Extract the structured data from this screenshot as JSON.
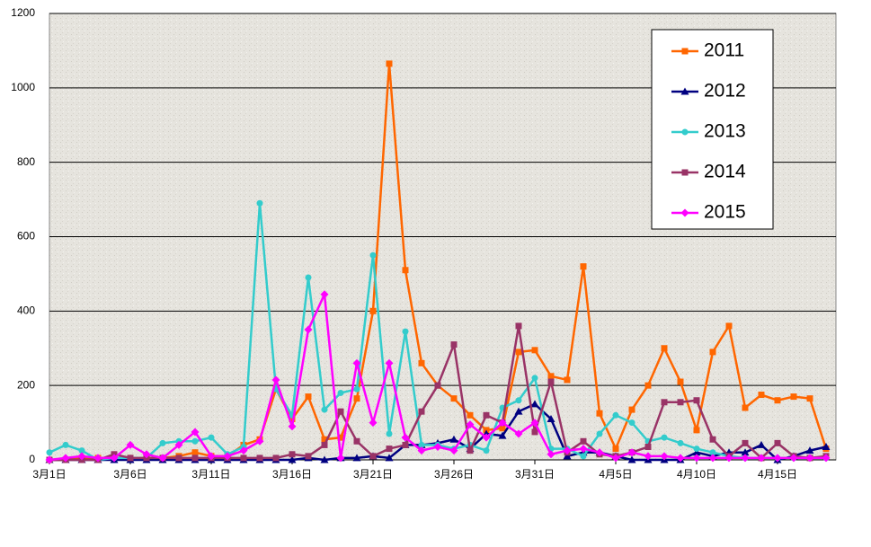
{
  "chart_data": {
    "type": "line",
    "categories": [
      "3月1日",
      null,
      null,
      null,
      null,
      "3月6日",
      null,
      null,
      null,
      null,
      "3月11日",
      null,
      null,
      null,
      null,
      "3月16日",
      null,
      null,
      null,
      null,
      "3月21日",
      null,
      null,
      null,
      null,
      "3月26日",
      null,
      null,
      null,
      null,
      "3月31日",
      null,
      null,
      null,
      null,
      "4月5日",
      null,
      null,
      null,
      null,
      "4月10日",
      null,
      null,
      null,
      null,
      "4月15日",
      null,
      null,
      null
    ],
    "series": [
      {
        "name": "2011",
        "color": "#ff6600",
        "marker": "square",
        "values": [
          0,
          0,
          5,
          5,
          5,
          5,
          5,
          5,
          10,
          20,
          10,
          10,
          40,
          55,
          190,
          110,
          170,
          55,
          60,
          165,
          400,
          1065,
          510,
          260,
          200,
          165,
          120,
          80,
          85,
          290,
          295,
          225,
          215,
          520,
          125,
          30,
          135,
          200,
          300,
          210,
          80,
          290,
          360,
          140,
          175,
          160,
          170,
          165,
          30
        ]
      },
      {
        "name": "2012",
        "color": "#000080",
        "marker": "triangle",
        "values": [
          0,
          0,
          0,
          0,
          0,
          0,
          0,
          0,
          0,
          0,
          0,
          0,
          0,
          0,
          0,
          0,
          5,
          0,
          5,
          5,
          10,
          5,
          40,
          40,
          45,
          55,
          30,
          70,
          65,
          130,
          150,
          110,
          10,
          20,
          20,
          10,
          0,
          0,
          0,
          0,
          20,
          10,
          20,
          20,
          40,
          0,
          10,
          25,
          35
        ]
      },
      {
        "name": "2013",
        "color": "#33cccc",
        "marker": "circle",
        "values": [
          20,
          40,
          25,
          0,
          5,
          5,
          5,
          45,
          50,
          50,
          60,
          15,
          35,
          690,
          190,
          120,
          490,
          135,
          180,
          190,
          550,
          70,
          345,
          40,
          40,
          30,
          40,
          25,
          140,
          160,
          220,
          30,
          30,
          10,
          70,
          120,
          100,
          50,
          60,
          45,
          30,
          20,
          10,
          5,
          5,
          5,
          5,
          5,
          5
        ]
      },
      {
        "name": "2014",
        "color": "#993366",
        "marker": "square",
        "values": [
          0,
          0,
          0,
          0,
          15,
          5,
          5,
          5,
          5,
          5,
          5,
          5,
          5,
          5,
          5,
          15,
          10,
          40,
          130,
          50,
          10,
          30,
          40,
          130,
          200,
          310,
          25,
          120,
          100,
          360,
          75,
          210,
          20,
          50,
          15,
          10,
          20,
          35,
          155,
          155,
          160,
          55,
          10,
          45,
          5,
          45,
          10,
          5,
          10
        ]
      },
      {
        "name": "2015",
        "color": "#ff00ff",
        "marker": "diamond",
        "values": [
          0,
          5,
          10,
          5,
          5,
          40,
          15,
          5,
          40,
          75,
          10,
          10,
          25,
          50,
          215,
          90,
          350,
          445,
          5,
          260,
          100,
          260,
          60,
          25,
          35,
          25,
          95,
          60,
          100,
          70,
          100,
          15,
          25,
          30,
          20,
          5,
          20,
          10,
          10,
          5,
          5,
          5,
          5,
          5,
          5,
          5,
          5,
          5,
          5
        ]
      }
    ],
    "ylim": [
      0,
      1200
    ],
    "yticks": [
      0,
      200,
      400,
      600,
      800,
      1000,
      1200
    ],
    "grid": true,
    "legend": "upper-right"
  }
}
